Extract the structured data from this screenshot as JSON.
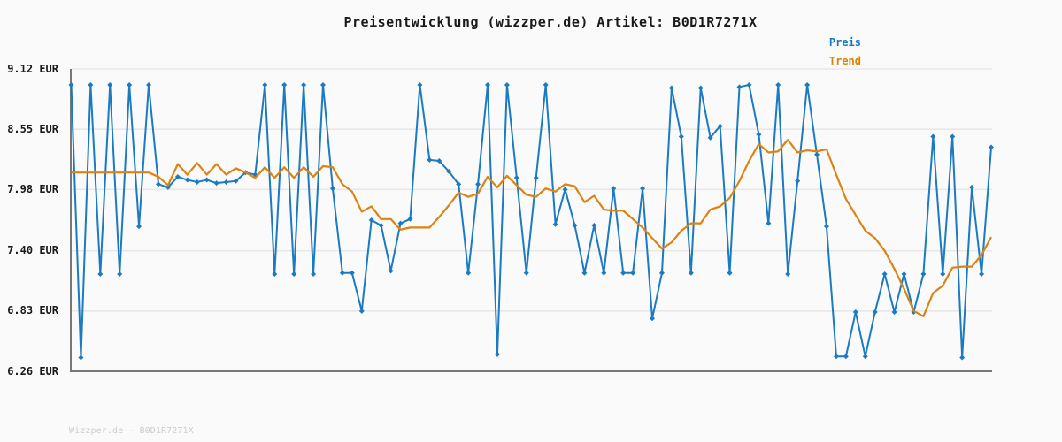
{
  "header": {
    "title": "Preisentwicklung (wizzper.de) Artikel: B0D1R7271X"
  },
  "legend": {
    "preis": "Preis",
    "trend": "Trend"
  },
  "page": {
    "footer": "Wizzper.de - B0D1R7271X"
  },
  "colors": {
    "background": "#fafafa",
    "title": "#1a1a1a",
    "tick_label": "#1a1a1a",
    "grid": "#e8e8e8",
    "spine": "#787878",
    "preis_line": "#1b7ac1",
    "trend_line": "#dd8311",
    "legend_preis": "#1878be",
    "legend_trend": "#dd8100",
    "footer_text": "#cccccc"
  },
  "chart_data": {
    "type": "line",
    "title": "Preisentwicklung (wizzper.de) Artikel: B0D1R7271X",
    "ylabel": "EUR",
    "xlabel": "",
    "x_tick_labels": [],
    "y_tick_labels": [
      "9.12 EUR",
      "8.55 EUR",
      "7.98 EUR",
      "7.40 EUR",
      "6.83 EUR",
      "6.26 EUR"
    ],
    "y_tick_values": [
      9.12,
      8.55,
      7.98,
      7.4,
      6.83,
      6.26
    ],
    "ylim": [
      6.26,
      9.12
    ],
    "grid": true,
    "legend_position": "top-right",
    "series": [
      {
        "name": "Preis",
        "color": "#1b7ac1",
        "marker": "diamond",
        "values": [
          8.97,
          6.39,
          8.97,
          7.18,
          8.97,
          7.18,
          8.97,
          7.63,
          8.97,
          8.03,
          8.0,
          8.1,
          8.07,
          8.05,
          8.07,
          8.04,
          8.05,
          8.06,
          8.14,
          8.12,
          8.97,
          7.18,
          8.97,
          7.18,
          8.97,
          7.18,
          8.97,
          7.99,
          7.19,
          7.19,
          6.83,
          7.69,
          7.64,
          7.21,
          7.66,
          7.7,
          8.97,
          8.26,
          8.25,
          8.15,
          8.03,
          7.19,
          8.03,
          8.97,
          6.42,
          8.97,
          8.09,
          7.19,
          8.09,
          8.97,
          7.65,
          7.98,
          7.64,
          7.19,
          7.64,
          7.19,
          7.99,
          7.19,
          7.19,
          7.99,
          6.76,
          7.19,
          8.94,
          8.48,
          7.19,
          8.94,
          8.47,
          8.58,
          7.19,
          8.95,
          8.97,
          8.5,
          7.66,
          8.97,
          7.18,
          8.06,
          8.97,
          8.31,
          7.63,
          6.4,
          6.4,
          6.82,
          6.4,
          6.82,
          7.18,
          6.82,
          7.18,
          6.82,
          7.18,
          8.48,
          7.18,
          8.48,
          6.39,
          8.0,
          7.18,
          8.38
        ]
      },
      {
        "name": "Trend",
        "color": "#dd8311",
        "marker": "none",
        "values": [
          8.14,
          8.14,
          8.14,
          8.14,
          8.14,
          8.14,
          8.14,
          8.14,
          8.14,
          8.1,
          8.02,
          8.22,
          8.12,
          8.23,
          8.12,
          8.22,
          8.12,
          8.18,
          8.14,
          8.09,
          8.19,
          8.09,
          8.19,
          8.09,
          8.19,
          8.1,
          8.2,
          8.19,
          8.03,
          7.96,
          7.77,
          7.82,
          7.7,
          7.7,
          7.6,
          7.62,
          7.62,
          7.62,
          7.72,
          7.83,
          7.95,
          7.91,
          7.94,
          8.1,
          8.0,
          8.11,
          8.02,
          7.93,
          7.91,
          7.99,
          7.96,
          8.03,
          8.01,
          7.86,
          7.92,
          7.79,
          7.78,
          7.78,
          7.7,
          7.62,
          7.52,
          7.42,
          7.48,
          7.59,
          7.66,
          7.66,
          7.79,
          7.82,
          7.9,
          8.06,
          8.25,
          8.41,
          8.33,
          8.34,
          8.45,
          8.33,
          8.35,
          8.34,
          8.36,
          8.12,
          7.89,
          7.74,
          7.59,
          7.52,
          7.4,
          7.23,
          7.04,
          6.83,
          6.78,
          7.0,
          7.07,
          7.24,
          7.25,
          7.25,
          7.36,
          7.53
        ]
      }
    ]
  }
}
